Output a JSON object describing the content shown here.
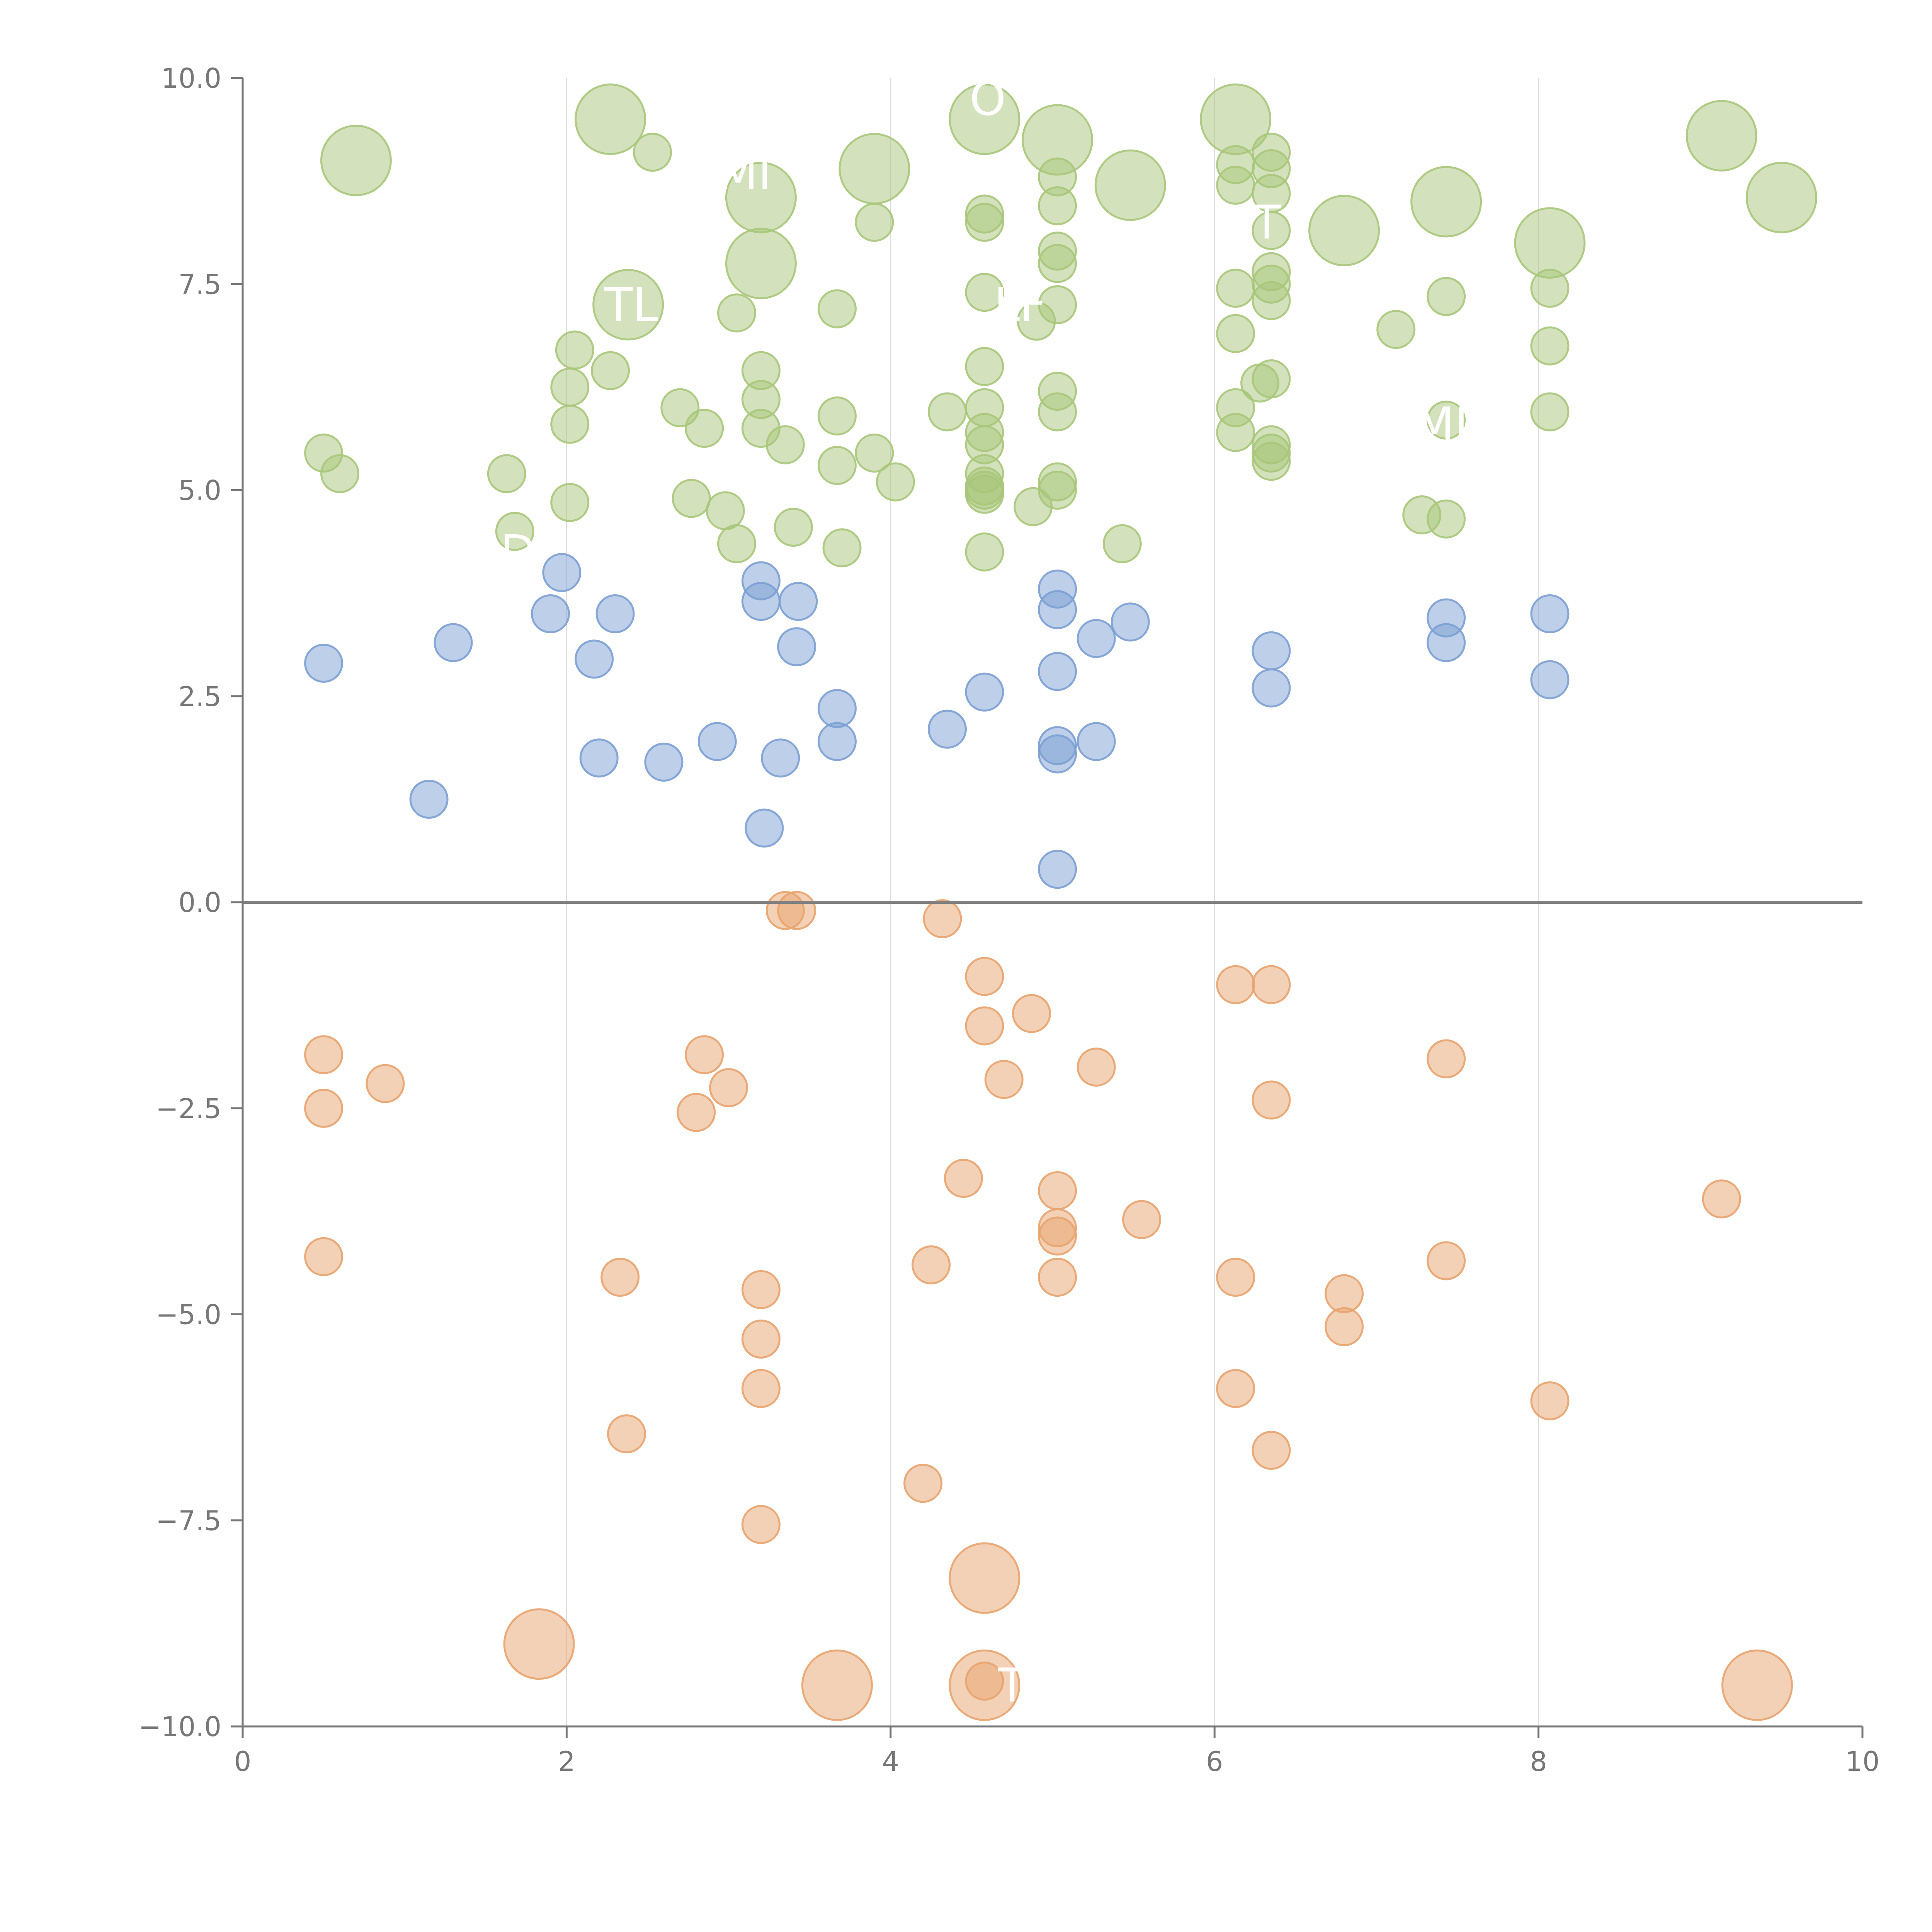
{
  "chart_data": {
    "type": "scatter",
    "title": "",
    "xlabel": "",
    "ylabel": "",
    "xlim": [
      0,
      10
    ],
    "ylim": [
      -10,
      10
    ],
    "x_ticks": [
      0,
      2,
      4,
      6,
      8,
      10
    ],
    "y_ticks": [
      -10.0,
      -7.5,
      -5.0,
      -2.5,
      0.0,
      2.5,
      5.0,
      7.5,
      10.0
    ],
    "x_tick_labels": [
      "0",
      "2",
      "4",
      "6",
      "8",
      "10"
    ],
    "y_tick_labels": [
      "−10.0",
      "−7.5",
      "−5.0",
      "−2.5",
      "0.0",
      "2.5",
      "5.0",
      "7.5",
      "10.0"
    ],
    "vertical_grid": true,
    "zero_line": true,
    "colors": {
      "green": "#a8c67a",
      "blue": "#7c9fd3",
      "orange": "#e8a36e",
      "axis": "#777777",
      "grid": "#dddddd",
      "zero_line": "#808080"
    },
    "series": [
      {
        "color_key": "green",
        "points": [
          [
            0.7,
            9.0,
            "L"
          ],
          [
            2.27,
            9.5,
            "L"
          ],
          [
            2.53,
            9.1,
            "S"
          ],
          [
            3.2,
            8.55,
            "L"
          ],
          [
            3.9,
            8.9,
            "L"
          ],
          [
            3.9,
            8.25,
            "S"
          ],
          [
            4.58,
            9.5,
            "L"
          ],
          [
            5.03,
            9.25,
            "L"
          ],
          [
            5.48,
            8.7,
            "L"
          ],
          [
            6.13,
            9.5,
            "L"
          ],
          [
            6.8,
            8.15,
            "L"
          ],
          [
            7.43,
            8.5,
            "L"
          ],
          [
            8.07,
            8.0,
            "L"
          ],
          [
            9.13,
            9.3,
            "L"
          ],
          [
            9.5,
            8.55,
            "L"
          ],
          [
            3.2,
            7.75,
            "L"
          ],
          [
            2.38,
            7.25,
            "L"
          ],
          [
            3.05,
            7.15,
            "S"
          ],
          [
            3.67,
            7.2,
            "S"
          ],
          [
            4.58,
            8.35,
            "S"
          ],
          [
            4.58,
            8.25,
            "S"
          ],
          [
            4.58,
            7.4,
            "S"
          ],
          [
            4.9,
            7.05,
            "S"
          ],
          [
            5.03,
            8.8,
            "S"
          ],
          [
            5.03,
            8.45,
            "S"
          ],
          [
            5.03,
            7.9,
            "S"
          ],
          [
            5.03,
            7.75,
            "S"
          ],
          [
            5.03,
            7.25,
            "S"
          ],
          [
            6.13,
            8.95,
            "S"
          ],
          [
            6.13,
            8.7,
            "S"
          ],
          [
            6.13,
            7.45,
            "S"
          ],
          [
            6.13,
            6.9,
            "S"
          ],
          [
            6.35,
            9.1,
            "S"
          ],
          [
            6.35,
            8.9,
            "S"
          ],
          [
            6.35,
            8.6,
            "S"
          ],
          [
            6.35,
            8.15,
            "S"
          ],
          [
            6.35,
            7.65,
            "S"
          ],
          [
            6.35,
            7.5,
            "S"
          ],
          [
            6.35,
            7.3,
            "S"
          ],
          [
            7.12,
            6.95,
            "S"
          ],
          [
            7.43,
            7.35,
            "S"
          ],
          [
            8.07,
            7.45,
            "S"
          ],
          [
            8.07,
            6.75,
            "S"
          ],
          [
            2.05,
            6.7,
            "S"
          ],
          [
            2.27,
            6.45,
            "S"
          ],
          [
            2.02,
            6.25,
            "S"
          ],
          [
            2.02,
            5.8,
            "S"
          ],
          [
            2.7,
            6.0,
            "S"
          ],
          [
            2.85,
            5.75,
            "S"
          ],
          [
            3.2,
            6.45,
            "S"
          ],
          [
            3.2,
            6.1,
            "S"
          ],
          [
            3.2,
            5.75,
            "S"
          ],
          [
            3.35,
            5.55,
            "S"
          ],
          [
            3.67,
            5.9,
            "S"
          ],
          [
            3.67,
            5.3,
            "S"
          ],
          [
            3.9,
            5.45,
            "S"
          ],
          [
            4.03,
            5.1,
            "S"
          ],
          [
            4.35,
            5.95,
            "S"
          ],
          [
            4.58,
            6.5,
            "S"
          ],
          [
            4.58,
            6.0,
            "S"
          ],
          [
            4.58,
            5.7,
            "S"
          ],
          [
            4.58,
            5.55,
            "S"
          ],
          [
            4.58,
            5.2,
            "S"
          ],
          [
            4.58,
            5.05,
            "S"
          ],
          [
            4.58,
            4.95,
            "S"
          ],
          [
            4.58,
            5.0,
            "S"
          ],
          [
            5.03,
            6.2,
            "S"
          ],
          [
            5.03,
            5.95,
            "S"
          ],
          [
            5.03,
            5.1,
            "S"
          ],
          [
            5.03,
            5.0,
            "S"
          ],
          [
            6.13,
            6.0,
            "S"
          ],
          [
            6.13,
            5.7,
            "S"
          ],
          [
            6.28,
            6.3,
            "S"
          ],
          [
            6.35,
            6.35,
            "S"
          ],
          [
            6.35,
            5.55,
            "S"
          ],
          [
            6.35,
            5.45,
            "S"
          ],
          [
            6.35,
            5.35,
            "S"
          ],
          [
            7.43,
            5.85,
            "S"
          ],
          [
            8.07,
            5.95,
            "S"
          ],
          [
            0.5,
            5.45,
            "S"
          ],
          [
            0.6,
            5.2,
            "S"
          ],
          [
            1.63,
            5.2,
            "S"
          ],
          [
            1.68,
            4.5,
            "S"
          ],
          [
            2.02,
            4.85,
            "S"
          ],
          [
            2.77,
            4.9,
            "S"
          ],
          [
            2.98,
            4.75,
            "S"
          ],
          [
            3.05,
            4.35,
            "S"
          ],
          [
            3.4,
            4.55,
            "S"
          ],
          [
            3.7,
            4.3,
            "S"
          ],
          [
            4.58,
            4.25,
            "S"
          ],
          [
            4.88,
            4.8,
            "S"
          ],
          [
            5.43,
            4.35,
            "S"
          ],
          [
            7.28,
            4.7,
            "S"
          ],
          [
            7.43,
            4.65,
            "S"
          ]
        ]
      },
      {
        "color_key": "blue",
        "points": [
          [
            0.5,
            2.9,
            "S"
          ],
          [
            1.3,
            3.15,
            "S"
          ],
          [
            1.15,
            1.25,
            "S"
          ],
          [
            1.9,
            3.5,
            "S"
          ],
          [
            1.97,
            4.0,
            "S"
          ],
          [
            2.17,
            2.95,
            "S"
          ],
          [
            2.2,
            1.75,
            "S"
          ],
          [
            2.3,
            3.5,
            "S"
          ],
          [
            2.6,
            1.7,
            "S"
          ],
          [
            2.93,
            1.95,
            "S"
          ],
          [
            3.2,
            3.9,
            "S"
          ],
          [
            3.2,
            3.65,
            "S"
          ],
          [
            3.32,
            1.75,
            "S"
          ],
          [
            3.22,
            0.9,
            "S"
          ],
          [
            3.43,
            3.65,
            "S"
          ],
          [
            3.42,
            3.1,
            "S"
          ],
          [
            3.67,
            2.35,
            "S"
          ],
          [
            3.67,
            1.95,
            "S"
          ],
          [
            4.35,
            2.1,
            "S"
          ],
          [
            4.58,
            2.55,
            "S"
          ],
          [
            5.03,
            3.8,
            "S"
          ],
          [
            5.03,
            3.55,
            "S"
          ],
          [
            5.03,
            2.8,
            "S"
          ],
          [
            5.03,
            1.9,
            "S"
          ],
          [
            5.03,
            1.8,
            "S"
          ],
          [
            5.03,
            0.4,
            "S"
          ],
          [
            5.27,
            3.2,
            "S"
          ],
          [
            5.27,
            1.95,
            "S"
          ],
          [
            5.48,
            3.4,
            "S"
          ],
          [
            6.35,
            3.05,
            "S"
          ],
          [
            6.35,
            2.6,
            "S"
          ],
          [
            7.43,
            3.45,
            "S"
          ],
          [
            7.43,
            3.15,
            "S"
          ],
          [
            8.07,
            3.5,
            "S"
          ],
          [
            8.07,
            2.7,
            "S"
          ]
        ]
      },
      {
        "color_key": "orange",
        "points": [
          [
            3.35,
            -0.1,
            "S"
          ],
          [
            3.42,
            -0.1,
            "S"
          ],
          [
            4.32,
            -0.2,
            "S"
          ],
          [
            4.58,
            -0.9,
            "S"
          ],
          [
            4.58,
            -1.5,
            "S"
          ],
          [
            4.87,
            -1.35,
            "S"
          ],
          [
            4.7,
            -2.15,
            "S"
          ],
          [
            5.27,
            -2.0,
            "S"
          ],
          [
            6.13,
            -1.0,
            "S"
          ],
          [
            6.35,
            -1.0,
            "S"
          ],
          [
            6.35,
            -2.4,
            "S"
          ],
          [
            7.43,
            -1.9,
            "S"
          ],
          [
            0.5,
            -1.85,
            "S"
          ],
          [
            0.5,
            -2.5,
            "S"
          ],
          [
            0.88,
            -2.2,
            "S"
          ],
          [
            2.85,
            -1.85,
            "S"
          ],
          [
            3.0,
            -2.25,
            "S"
          ],
          [
            2.8,
            -2.55,
            "S"
          ],
          [
            4.45,
            -3.35,
            "S"
          ],
          [
            5.03,
            -3.5,
            "S"
          ],
          [
            5.03,
            -3.95,
            "S"
          ],
          [
            5.03,
            -4.05,
            "S"
          ],
          [
            5.55,
            -3.85,
            "S"
          ],
          [
            9.13,
            -3.6,
            "S"
          ],
          [
            0.5,
            -4.3,
            "S"
          ],
          [
            2.33,
            -4.55,
            "S"
          ],
          [
            3.2,
            -4.7,
            "S"
          ],
          [
            3.2,
            -5.3,
            "S"
          ],
          [
            3.2,
            -5.9,
            "S"
          ],
          [
            2.37,
            -6.45,
            "S"
          ],
          [
            4.25,
            -4.4,
            "S"
          ],
          [
            5.03,
            -4.55,
            "S"
          ],
          [
            6.13,
            -4.55,
            "S"
          ],
          [
            6.13,
            -5.9,
            "S"
          ],
          [
            6.35,
            -6.65,
            "S"
          ],
          [
            6.8,
            -4.75,
            "S"
          ],
          [
            6.8,
            -5.15,
            "S"
          ],
          [
            7.43,
            -4.35,
            "S"
          ],
          [
            8.07,
            -6.05,
            "S"
          ],
          [
            4.2,
            -7.05,
            "S"
          ],
          [
            3.2,
            -7.55,
            "S"
          ],
          [
            4.58,
            -8.2,
            "L"
          ],
          [
            1.83,
            -9.0,
            "L"
          ],
          [
            3.67,
            -9.5,
            "L"
          ],
          [
            4.58,
            -9.5,
            "L"
          ],
          [
            4.58,
            -9.45,
            "S"
          ],
          [
            9.35,
            -9.5,
            "L"
          ]
        ]
      }
    ],
    "labels": [
      {
        "text": "O",
        "x": 4.6,
        "y": 9.75
      },
      {
        "text": "MI",
        "x": 3.1,
        "y": 8.85
      },
      {
        "text": "MT",
        "x": 6.2,
        "y": 8.25
      },
      {
        "text": "TL",
        "x": 2.4,
        "y": 7.25
      },
      {
        "text": "LF",
        "x": 4.8,
        "y": 7.25
      },
      {
        "text": "MI",
        "x": 7.4,
        "y": 5.8
      },
      {
        "text": "D",
        "x": 1.7,
        "y": 4.25
      },
      {
        "text": "T",
        "x": 4.75,
        "y": -9.5
      }
    ]
  }
}
